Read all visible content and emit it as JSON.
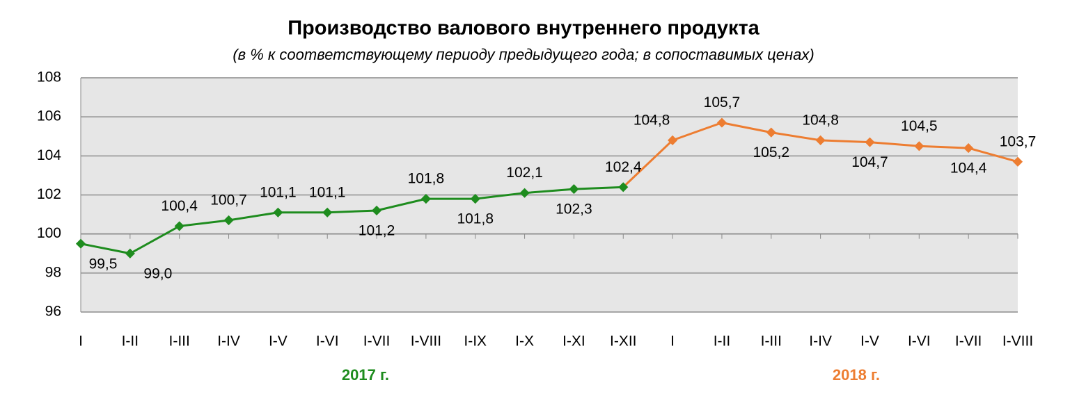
{
  "chart_data": {
    "type": "line",
    "title": "Производство валового внутреннего продукта",
    "subtitle": "(в % к соответствующему периоду предыдущего года; в сопоставимых ценах)",
    "categories": [
      "I",
      "I-II",
      "I-III",
      "I-IV",
      "I-V",
      "I-VI",
      "I-VII",
      "I-VIII",
      "I-IX",
      "I-X",
      "I-XI",
      "I-XII",
      "I",
      "I-II",
      "I-III",
      "I-IV",
      "I-V",
      "I-VI",
      "I-VII",
      "I-VIII"
    ],
    "series": [
      {
        "name": "2017 г.",
        "color": "#1e8c1e",
        "values": [
          99.5,
          99.0,
          100.4,
          100.7,
          101.1,
          101.1,
          101.2,
          101.8,
          101.8,
          102.1,
          102.3,
          102.4,
          null,
          null,
          null,
          null,
          null,
          null,
          null,
          null
        ],
        "value_labels": [
          "99,5",
          "99,0",
          "100,4",
          "100,7",
          "101,1",
          "101,1",
          "101,2",
          "101,8",
          "101,8",
          "102,1",
          "102,3",
          "102,4",
          null,
          null,
          null,
          null,
          null,
          null,
          null,
          null
        ]
      },
      {
        "name": "2018 г.",
        "color": "#ed7d31",
        "values": [
          null,
          null,
          null,
          null,
          null,
          null,
          null,
          null,
          null,
          null,
          null,
          null,
          104.8,
          105.7,
          105.2,
          104.8,
          104.7,
          104.5,
          104.4,
          103.7
        ],
        "value_labels": [
          null,
          null,
          null,
          null,
          null,
          null,
          null,
          null,
          null,
          null,
          null,
          null,
          "104,8",
          "105,7",
          "105,2",
          "104,8",
          "104,7",
          "104,5",
          "104,4",
          "103,7"
        ]
      }
    ],
    "ylim": [
      96,
      108
    ],
    "yticks": [
      96,
      98,
      100,
      102,
      104,
      106,
      108
    ],
    "grid": true
  }
}
